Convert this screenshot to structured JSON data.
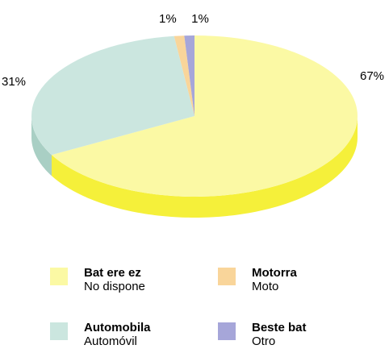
{
  "chart_data": {
    "type": "pie",
    "style": "3d",
    "categories": [
      "Bat ere ez",
      "Automobila",
      "Motorra",
      "Beste bat"
    ],
    "subtitles": [
      "No dispone",
      "Automóvil",
      "Moto",
      "Otro"
    ],
    "values": [
      67,
      31,
      1,
      1
    ],
    "labels": [
      "67%",
      "31%",
      "1%",
      "1%"
    ],
    "colors": [
      "#FBF9A4",
      "#CBE6DF",
      "#F9D59A",
      "#A6A6D9"
    ],
    "side_colors": [
      "#F5F03A",
      "#A9CFC4",
      "#EBB968",
      "#7E7EC4"
    ],
    "legend_position": "bottom"
  },
  "legend": {
    "items": [
      {
        "label": "Bat ere ez",
        "sub": "No dispone",
        "color": "#FBF9A4"
      },
      {
        "label": "Motorra",
        "sub": "Moto",
        "color": "#F9D59A"
      },
      {
        "label": "Automobila",
        "sub": "Automóvil",
        "color": "#CBE6DF"
      },
      {
        "label": "Beste bat",
        "sub": "Otro",
        "color": "#A6A6D9"
      }
    ]
  }
}
